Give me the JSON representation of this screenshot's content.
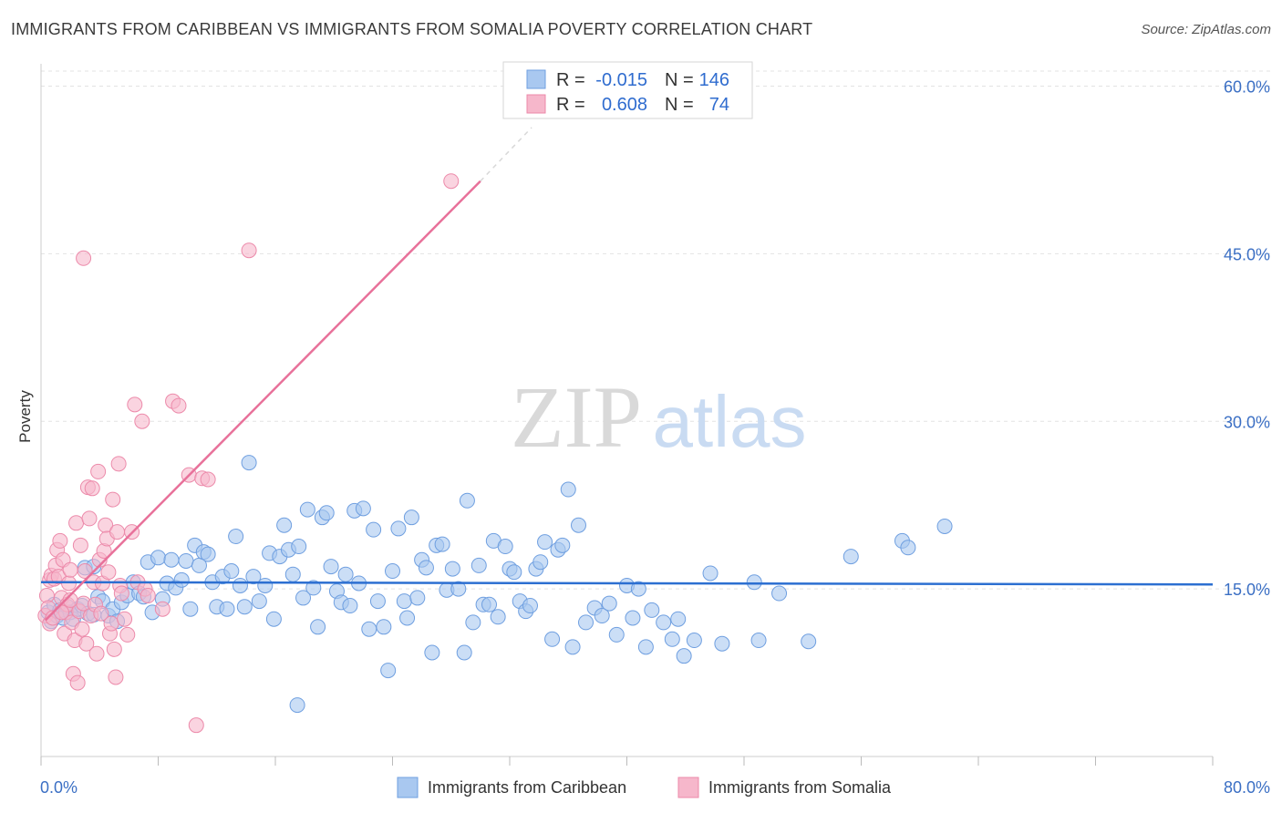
{
  "title": "IMMIGRANTS FROM CARIBBEAN VS IMMIGRANTS FROM SOMALIA POVERTY CORRELATION CHART",
  "source": "Source: ZipAtlas.com",
  "watermark": {
    "zip": "ZIP",
    "atlas": "atlas"
  },
  "colors": {
    "blue_fill": "#a9c8f0",
    "blue_stroke": "#6f9fe0",
    "blue_line": "#2c6fd1",
    "pink_fill": "#f6b7cb",
    "pink_stroke": "#ec8aaa",
    "pink_line": "#e8719a",
    "grid": "#e3e3e3",
    "label": "#3b6fc4"
  },
  "legend": {
    "r_label": "R =",
    "n_label": "N =",
    "rows": [
      {
        "r": "-0.015",
        "n": "146"
      },
      {
        "r": "0.608",
        "n": "74"
      }
    ]
  },
  "chart_data": {
    "type": "scatter",
    "title": "IMMIGRANTS FROM CARIBBEAN VS IMMIGRANTS FROM SOMALIA POVERTY CORRELATION CHART",
    "xlabel": "",
    "ylabel": "Poverty",
    "xlim": [
      0,
      80
    ],
    "ylim": [
      0,
      62
    ],
    "x_tick_labels": [
      "0.0%",
      "80.0%"
    ],
    "y_ticks": [
      15,
      30,
      45,
      60
    ],
    "y_tick_labels": [
      "15.0%",
      "30.0%",
      "45.0%",
      "60.0%"
    ],
    "legend_position": "top-center",
    "series": [
      {
        "name": "Immigrants from Caribbean",
        "trend": {
          "x": [
            0,
            80
          ],
          "y": [
            15.6,
            15.4
          ]
        },
        "points": [
          [
            0.5,
            12.9
          ],
          [
            0.7,
            12.1
          ],
          [
            0.9,
            13.6
          ],
          [
            1.1,
            12.6
          ],
          [
            1.3,
            13.1
          ],
          [
            1.5,
            12.4
          ],
          [
            1.8,
            13.4
          ],
          [
            2.0,
            12.9
          ],
          [
            2.2,
            12.3
          ],
          [
            2.5,
            13.2
          ],
          [
            2.8,
            13.5
          ],
          [
            3.0,
            16.9
          ],
          [
            3.2,
            12.8
          ],
          [
            3.6,
            12.7
          ],
          [
            3.9,
            14.3
          ],
          [
            4.2,
            13.9
          ],
          [
            4.6,
            12.6
          ],
          [
            4.9,
            13.2
          ],
          [
            5.2,
            12.1
          ],
          [
            5.5,
            13.8
          ],
          [
            5.9,
            14.4
          ],
          [
            6.3,
            15.6
          ],
          [
            6.7,
            14.6
          ],
          [
            7.0,
            14.3
          ],
          [
            7.3,
            17.4
          ],
          [
            7.6,
            12.9
          ],
          [
            8.0,
            17.8
          ],
          [
            8.3,
            14.1
          ],
          [
            8.6,
            15.5
          ],
          [
            8.9,
            17.6
          ],
          [
            9.2,
            15.1
          ],
          [
            9.6,
            15.8
          ],
          [
            9.9,
            17.5
          ],
          [
            10.2,
            13.2
          ],
          [
            10.5,
            18.9
          ],
          [
            10.8,
            17.1
          ],
          [
            11.1,
            18.3
          ],
          [
            11.4,
            18.1
          ],
          [
            11.7,
            15.6
          ],
          [
            12.0,
            13.4
          ],
          [
            12.4,
            16.1
          ],
          [
            12.7,
            13.2
          ],
          [
            13.0,
            16.6
          ],
          [
            13.3,
            19.7
          ],
          [
            13.6,
            15.3
          ],
          [
            13.9,
            13.4
          ],
          [
            14.2,
            26.3
          ],
          [
            14.5,
            16.1
          ],
          [
            14.9,
            13.9
          ],
          [
            15.3,
            15.3
          ],
          [
            15.6,
            18.2
          ],
          [
            15.9,
            12.3
          ],
          [
            16.3,
            17.9
          ],
          [
            16.6,
            20.7
          ],
          [
            16.9,
            18.5
          ],
          [
            17.2,
            16.3
          ],
          [
            17.6,
            18.8
          ],
          [
            17.9,
            14.2
          ],
          [
            18.2,
            22.1
          ],
          [
            18.6,
            15.1
          ],
          [
            18.9,
            11.6
          ],
          [
            19.2,
            21.4
          ],
          [
            19.5,
            21.8
          ],
          [
            19.8,
            17.0
          ],
          [
            20.2,
            14.8
          ],
          [
            20.5,
            13.8
          ],
          [
            20.8,
            16.3
          ],
          [
            21.1,
            13.5
          ],
          [
            21.4,
            22.0
          ],
          [
            21.7,
            15.5
          ],
          [
            22.0,
            22.2
          ],
          [
            22.4,
            11.4
          ],
          [
            22.7,
            20.3
          ],
          [
            23.0,
            13.9
          ],
          [
            23.4,
            11.6
          ],
          [
            23.7,
            7.7
          ],
          [
            24.0,
            16.6
          ],
          [
            24.4,
            20.4
          ],
          [
            24.8,
            13.9
          ],
          [
            25.0,
            12.4
          ],
          [
            25.3,
            21.4
          ],
          [
            25.7,
            14.2
          ],
          [
            26.0,
            17.6
          ],
          [
            26.3,
            16.9
          ],
          [
            26.7,
            9.3
          ],
          [
            27.0,
            18.9
          ],
          [
            27.4,
            19.0
          ],
          [
            27.7,
            14.9
          ],
          [
            28.1,
            16.8
          ],
          [
            28.5,
            15.0
          ],
          [
            28.9,
            9.3
          ],
          [
            29.1,
            22.9
          ],
          [
            29.5,
            12.0
          ],
          [
            29.9,
            17.1
          ],
          [
            30.2,
            13.6
          ],
          [
            30.6,
            13.6
          ],
          [
            30.9,
            19.3
          ],
          [
            31.2,
            12.5
          ],
          [
            31.7,
            18.8
          ],
          [
            32.0,
            16.8
          ],
          [
            32.3,
            16.5
          ],
          [
            32.7,
            13.9
          ],
          [
            33.1,
            13.0
          ],
          [
            33.4,
            13.5
          ],
          [
            33.8,
            16.8
          ],
          [
            34.1,
            17.4
          ],
          [
            34.4,
            19.2
          ],
          [
            34.9,
            10.5
          ],
          [
            35.3,
            18.5
          ],
          [
            35.6,
            18.9
          ],
          [
            36.0,
            23.9
          ],
          [
            36.3,
            9.8
          ],
          [
            36.7,
            20.7
          ],
          [
            37.2,
            12.0
          ],
          [
            37.8,
            13.3
          ],
          [
            38.3,
            12.6
          ],
          [
            38.8,
            13.7
          ],
          [
            39.3,
            10.9
          ],
          [
            40.0,
            15.3
          ],
          [
            40.4,
            12.4
          ],
          [
            40.8,
            15.0
          ],
          [
            41.3,
            9.8
          ],
          [
            41.7,
            13.1
          ],
          [
            42.5,
            12.0
          ],
          [
            43.1,
            10.5
          ],
          [
            43.5,
            12.3
          ],
          [
            43.9,
            9.0
          ],
          [
            44.6,
            10.4
          ],
          [
            45.7,
            16.4
          ],
          [
            46.5,
            10.1
          ],
          [
            48.7,
            15.6
          ],
          [
            49.0,
            10.4
          ],
          [
            50.4,
            14.6
          ],
          [
            52.4,
            10.3
          ],
          [
            55.3,
            17.9
          ],
          [
            58.8,
            19.3
          ],
          [
            59.2,
            18.7
          ],
          [
            61.7,
            20.6
          ],
          [
            17.5,
            4.6
          ],
          [
            3.6,
            17.0
          ]
        ]
      },
      {
        "name": "Immigrants from Somalia",
        "trend": {
          "x": [
            0.3,
            30.0
          ],
          "y": [
            12.2,
            51.5
          ]
        },
        "trend_dashed": {
          "x": [
            30.0,
            33.5
          ],
          "y": [
            51.5,
            56.3
          ]
        },
        "points": [
          [
            0.3,
            12.6
          ],
          [
            0.4,
            14.4
          ],
          [
            0.5,
            13.3
          ],
          [
            0.6,
            15.8
          ],
          [
            0.6,
            11.9
          ],
          [
            0.7,
            16.2
          ],
          [
            0.8,
            12.4
          ],
          [
            0.9,
            15.9
          ],
          [
            1.0,
            17.1
          ],
          [
            1.1,
            18.5
          ],
          [
            1.2,
            16.1
          ],
          [
            1.3,
            19.3
          ],
          [
            1.4,
            14.2
          ],
          [
            1.5,
            17.6
          ],
          [
            1.6,
            11.0
          ],
          [
            1.7,
            12.9
          ],
          [
            1.8,
            13.6
          ],
          [
            1.9,
            15.5
          ],
          [
            2.0,
            16.7
          ],
          [
            2.1,
            12.0
          ],
          [
            2.2,
            7.4
          ],
          [
            2.3,
            10.4
          ],
          [
            2.4,
            20.9
          ],
          [
            2.5,
            6.6
          ],
          [
            2.6,
            13.0
          ],
          [
            2.7,
            18.9
          ],
          [
            2.8,
            11.4
          ],
          [
            2.9,
            13.7
          ],
          [
            3.0,
            16.6
          ],
          [
            3.1,
            10.1
          ],
          [
            3.2,
            24.1
          ],
          [
            3.3,
            21.3
          ],
          [
            3.4,
            12.6
          ],
          [
            3.5,
            24.0
          ],
          [
            3.6,
            15.6
          ],
          [
            3.7,
            13.6
          ],
          [
            3.8,
            9.2
          ],
          [
            3.9,
            25.5
          ],
          [
            4.0,
            17.6
          ],
          [
            4.1,
            12.8
          ],
          [
            4.2,
            15.5
          ],
          [
            4.3,
            18.4
          ],
          [
            4.4,
            20.7
          ],
          [
            4.5,
            19.5
          ],
          [
            4.6,
            16.5
          ],
          [
            4.7,
            11.0
          ],
          [
            4.8,
            11.9
          ],
          [
            4.9,
            23.0
          ],
          [
            5.0,
            9.6
          ],
          [
            5.1,
            7.1
          ],
          [
            5.2,
            20.1
          ],
          [
            5.3,
            26.2
          ],
          [
            5.4,
            15.3
          ],
          [
            5.5,
            14.6
          ],
          [
            5.7,
            12.3
          ],
          [
            5.9,
            10.9
          ],
          [
            6.2,
            20.1
          ],
          [
            6.4,
            31.5
          ],
          [
            6.6,
            15.6
          ],
          [
            6.9,
            30.0
          ],
          [
            7.1,
            15.0
          ],
          [
            7.3,
            14.4
          ],
          [
            8.3,
            13.2
          ],
          [
            9.0,
            31.8
          ],
          [
            9.4,
            31.4
          ],
          [
            10.1,
            25.2
          ],
          [
            10.6,
            2.8
          ],
          [
            11.0,
            24.9
          ],
          [
            11.4,
            24.8
          ],
          [
            14.2,
            45.3
          ],
          [
            28.0,
            51.5
          ],
          [
            2.9,
            44.6
          ],
          [
            1.4,
            12.9
          ],
          [
            2.0,
            14.0
          ]
        ]
      }
    ]
  }
}
